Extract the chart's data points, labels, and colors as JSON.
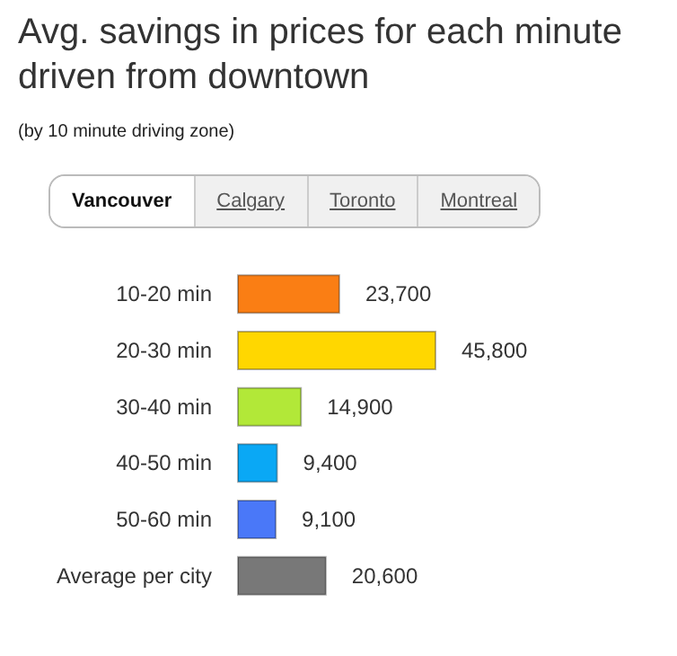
{
  "chart_data": {
    "type": "bar",
    "orientation": "horizontal",
    "title": "Avg. savings in prices for each minute driven from downtown",
    "subtitle": "(by 10 minute driving zone)",
    "annotations": [
      "Vancouver",
      "Calgary",
      "Toronto",
      "Montreal"
    ],
    "categories": [
      "10-20 min",
      "20-30 min",
      "30-40 min",
      "40-50 min",
      "50-60 min",
      "Average per city"
    ],
    "values": [
      23700,
      45800,
      14900,
      9400,
      9100,
      20600
    ],
    "colors": [
      "#fa7e14",
      "#ffd700",
      "#b2e838",
      "#0aa8f5",
      "#4a78f8",
      "#787878"
    ],
    "value_labels": [
      "23,700",
      "45,800",
      "14,900",
      "9,400",
      "9,100",
      "20,600"
    ]
  }
}
